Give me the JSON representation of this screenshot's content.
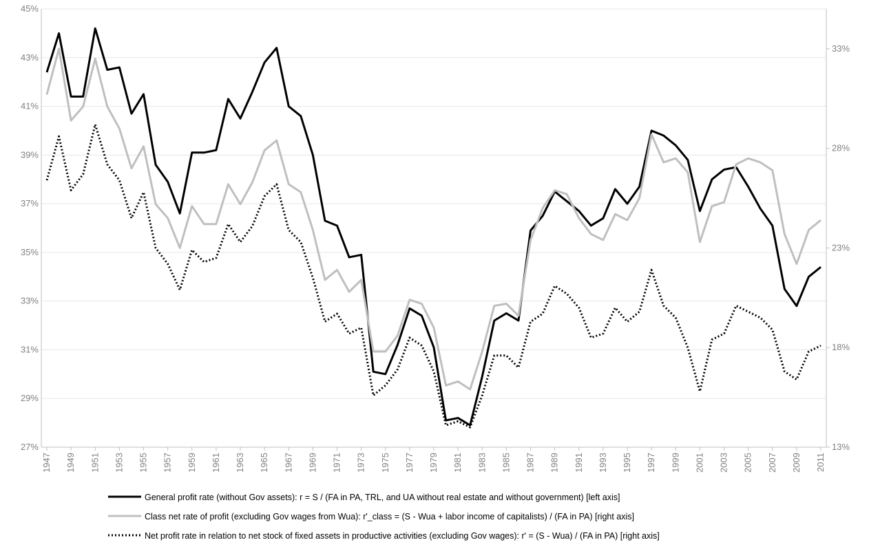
{
  "chart_data": {
    "type": "line",
    "x": [
      1947,
      1948,
      1949,
      1950,
      1951,
      1952,
      1953,
      1954,
      1955,
      1956,
      1957,
      1958,
      1959,
      1960,
      1961,
      1962,
      1963,
      1964,
      1965,
      1966,
      1967,
      1968,
      1969,
      1970,
      1971,
      1972,
      1973,
      1974,
      1975,
      1976,
      1977,
      1978,
      1979,
      1980,
      1981,
      1982,
      1983,
      1984,
      1985,
      1986,
      1987,
      1988,
      1989,
      1990,
      1991,
      1992,
      1993,
      1994,
      1995,
      1996,
      1997,
      1998,
      1999,
      2000,
      2001,
      2002,
      2003,
      2004,
      2005,
      2006,
      2007,
      2008,
      2009,
      2010,
      2011
    ],
    "xlim": [
      1947,
      2011
    ],
    "xticks": [
      1947,
      1949,
      1951,
      1953,
      1955,
      1957,
      1959,
      1961,
      1963,
      1965,
      1967,
      1969,
      1971,
      1973,
      1975,
      1977,
      1979,
      1981,
      1983,
      1985,
      1987,
      1989,
      1991,
      1993,
      1995,
      1997,
      1999,
      2001,
      2003,
      2005,
      2007,
      2009,
      2011
    ],
    "ylim": [
      27,
      45
    ],
    "yticks": [
      {
        "value": 27,
        "label": "27%"
      },
      {
        "value": 29,
        "label": "29%"
      },
      {
        "value": 31,
        "label": "31%"
      },
      {
        "value": 33,
        "label": "33%"
      },
      {
        "value": 35,
        "label": "35%"
      },
      {
        "value": 37,
        "label": "37%"
      },
      {
        "value": 39,
        "label": "39%"
      },
      {
        "value": 41,
        "label": "41%"
      },
      {
        "value": 43,
        "label": "43%"
      },
      {
        "value": 45,
        "label": "45%"
      }
    ],
    "y2lim": [
      13,
      35
    ],
    "y2ticks": [
      {
        "value": 13,
        "label": "13%"
      },
      {
        "value": 18,
        "label": "18%"
      },
      {
        "value": 23,
        "label": "23%"
      },
      {
        "value": 28,
        "label": "28%"
      },
      {
        "value": 33,
        "label": "33%"
      }
    ],
    "grid": true,
    "series": [
      {
        "name": "General profit rate (without Gov assets): r = S / (FA in PA, TRL, and UA without real estate and without government) [left axis]",
        "color": "#000000",
        "style": "solid",
        "values": [
          42.4,
          44.0,
          41.4,
          41.4,
          44.2,
          42.5,
          42.6,
          40.7,
          41.5,
          38.6,
          37.9,
          36.6,
          39.1,
          39.1,
          39.2,
          41.3,
          40.5,
          41.6,
          42.8,
          43.4,
          41.0,
          40.6,
          39.0,
          36.3,
          36.1,
          34.8,
          34.9,
          30.1,
          30.0,
          31.2,
          32.7,
          32.4,
          31.1,
          28.1,
          28.2,
          27.9,
          29.9,
          32.2,
          32.5,
          32.2,
          35.9,
          36.5,
          37.5,
          37.1,
          36.7,
          36.1,
          36.4,
          37.6,
          37.0,
          37.7,
          40.0,
          39.8,
          39.4,
          38.8,
          36.7,
          38.0,
          38.4,
          38.5,
          37.7,
          36.8,
          36.1,
          33.5,
          32.8,
          34.0,
          34.4
        ]
      },
      {
        "name": "Class net rate of profit (excluding Gov wages from Wua): r'_class = (S - Wua + labor income of capitalists) / (FA in PA) [right axis]",
        "color": "#bfbfbf",
        "style": "solid",
        "axis": "y2",
        "values": [
          30.7,
          33.0,
          29.4,
          30.1,
          32.5,
          30.1,
          29.0,
          27.0,
          28.1,
          25.2,
          24.5,
          23.0,
          25.1,
          24.2,
          24.2,
          26.2,
          25.2,
          26.3,
          27.9,
          28.4,
          26.2,
          25.8,
          23.9,
          21.4,
          21.9,
          20.8,
          21.4,
          17.8,
          17.8,
          18.6,
          20.4,
          20.2,
          19.0,
          16.1,
          16.3,
          15.9,
          17.8,
          20.1,
          20.2,
          19.6,
          23.4,
          25.0,
          25.9,
          25.7,
          24.5,
          23.7,
          23.4,
          24.7,
          24.4,
          25.5,
          28.7,
          27.3,
          27.5,
          26.8,
          23.3,
          25.1,
          25.3,
          27.2,
          27.5,
          27.3,
          26.9,
          23.7,
          22.2,
          23.9,
          24.4
        ]
      },
      {
        "name": "Net profit rate in relation to net stock of fixed assets in productive activities (excluding Gov wages): r' = (S - Wua) / (FA in PA) [right axis]",
        "color": "#000000",
        "style": "dotted",
        "axis": "y2",
        "values": [
          26.4,
          28.6,
          25.9,
          26.7,
          29.2,
          27.2,
          26.4,
          24.5,
          25.8,
          23.0,
          22.2,
          20.9,
          22.9,
          22.3,
          22.5,
          24.2,
          23.3,
          24.1,
          25.6,
          26.2,
          23.9,
          23.3,
          21.5,
          19.3,
          19.7,
          18.7,
          19.0,
          15.6,
          16.1,
          16.9,
          18.5,
          18.1,
          16.8,
          14.1,
          14.3,
          14.0,
          15.6,
          17.6,
          17.6,
          17.0,
          19.3,
          19.7,
          21.1,
          20.7,
          20.0,
          18.5,
          18.7,
          20.0,
          19.3,
          19.8,
          21.9,
          20.1,
          19.5,
          18.0,
          15.8,
          18.4,
          18.7,
          20.1,
          19.8,
          19.5,
          18.9,
          16.8,
          16.4,
          17.8,
          18.1
        ]
      }
    ]
  }
}
